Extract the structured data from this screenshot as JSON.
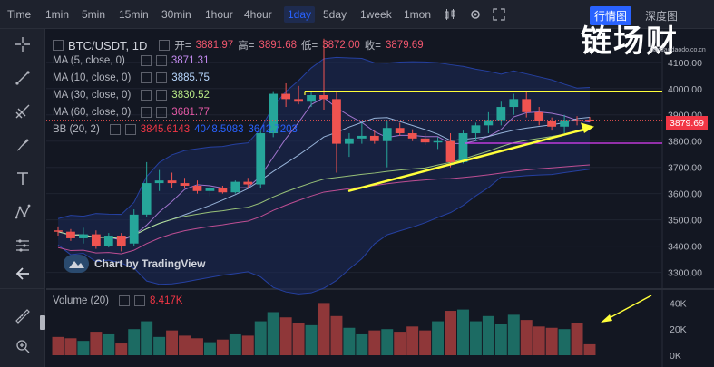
{
  "toolbar": {
    "items": [
      "Time",
      "1min",
      "5min",
      "15min",
      "30min",
      "1hour",
      "4hour",
      "1day",
      "5day",
      "1week",
      "1mon"
    ],
    "active": "1day",
    "tab_market": "行情图",
    "tab_depth": "深度图"
  },
  "brand": {
    "logo_text": "链场财",
    "logo_url": "liandaodaodo.co.cn"
  },
  "legend": {
    "symbol": "BTC/USDT, 1D",
    "open_label": "开=",
    "open": "3881.97",
    "high_label": "高=",
    "high": "3891.68",
    "low_label": "低=",
    "low": "3872.00",
    "close_label": "收=",
    "close": "3879.69",
    "ma5_label": "MA (5, close, 0)",
    "ma5_value": "3871.31",
    "ma5_color": "#c38af0",
    "ma10_label": "MA (10, close, 0)",
    "ma10_value": "3885.75",
    "ma10_color": "#b8d8ff",
    "ma30_label": "MA (30, close, 0)",
    "ma30_value": "3830.52",
    "ma30_color": "#b8e986",
    "ma60_label": "MA (60, close, 0)",
    "ma60_value": "3681.77",
    "ma60_color": "#e85aa8",
    "bb_label": "BB (20, 2)",
    "bb_value1": "3845.6143",
    "bb_value2": "4048.5083",
    "bb_value3": "3642.7203",
    "volume_label": "Volume (20)",
    "volume_value": "8.417K"
  },
  "credit": "Chart by TradingView",
  "price_tag": "3879.69",
  "colors": {
    "up": "#26a69a",
    "down": "#ef5350",
    "accent": "#2962ff",
    "annotation": "#ffff3a"
  },
  "chart_data": {
    "type": "candlestick",
    "y_ticks": [
      "4100.00",
      "4000.00",
      "3900.00",
      "3800.00",
      "3700.00",
      "3600.00",
      "3500.00",
      "3400.00",
      "3300.00"
    ],
    "volume_ticks": [
      "40K",
      "20K",
      "0K"
    ],
    "ylim": [
      3240,
      4220
    ],
    "candles": [
      {
        "o": 3460,
        "h": 3475,
        "l": 3440,
        "c": 3455
      },
      {
        "o": 3455,
        "h": 3465,
        "l": 3420,
        "c": 3430
      },
      {
        "o": 3430,
        "h": 3470,
        "l": 3410,
        "c": 3445
      },
      {
        "o": 3445,
        "h": 3460,
        "l": 3390,
        "c": 3400
      },
      {
        "o": 3400,
        "h": 3450,
        "l": 3395,
        "c": 3440
      },
      {
        "o": 3440,
        "h": 3450,
        "l": 3380,
        "c": 3400
      },
      {
        "o": 3410,
        "h": 3540,
        "l": 3400,
        "c": 3520
      },
      {
        "o": 3520,
        "h": 3720,
        "l": 3510,
        "c": 3640
      },
      {
        "o": 3640,
        "h": 3690,
        "l": 3610,
        "c": 3650
      },
      {
        "o": 3650,
        "h": 3680,
        "l": 3620,
        "c": 3640
      },
      {
        "o": 3640,
        "h": 3660,
        "l": 3620,
        "c": 3630
      },
      {
        "o": 3630,
        "h": 3650,
        "l": 3600,
        "c": 3610
      },
      {
        "o": 3610,
        "h": 3630,
        "l": 3590,
        "c": 3620
      },
      {
        "o": 3620,
        "h": 3630,
        "l": 3600,
        "c": 3605
      },
      {
        "o": 3605,
        "h": 3650,
        "l": 3600,
        "c": 3645
      },
      {
        "o": 3645,
        "h": 3660,
        "l": 3620,
        "c": 3635
      },
      {
        "o": 3635,
        "h": 3840,
        "l": 3620,
        "c": 3830
      },
      {
        "o": 3830,
        "h": 3990,
        "l": 3815,
        "c": 3980
      },
      {
        "o": 3980,
        "h": 4020,
        "l": 3930,
        "c": 3960
      },
      {
        "o": 3960,
        "h": 4010,
        "l": 3940,
        "c": 3950
      },
      {
        "o": 3950,
        "h": 3990,
        "l": 3930,
        "c": 3975
      },
      {
        "o": 3975,
        "h": 4190,
        "l": 3920,
        "c": 3960
      },
      {
        "o": 3960,
        "h": 3985,
        "l": 3680,
        "c": 3790
      },
      {
        "o": 3790,
        "h": 3830,
        "l": 3740,
        "c": 3810
      },
      {
        "o": 3810,
        "h": 3870,
        "l": 3790,
        "c": 3820
      },
      {
        "o": 3820,
        "h": 3840,
        "l": 3790,
        "c": 3800
      },
      {
        "o": 3800,
        "h": 3880,
        "l": 3700,
        "c": 3850
      },
      {
        "o": 3850,
        "h": 3870,
        "l": 3820,
        "c": 3830
      },
      {
        "o": 3830,
        "h": 3845,
        "l": 3800,
        "c": 3810
      },
      {
        "o": 3810,
        "h": 3830,
        "l": 3785,
        "c": 3795
      },
      {
        "o": 3795,
        "h": 3815,
        "l": 3770,
        "c": 3800
      },
      {
        "o": 3800,
        "h": 3830,
        "l": 3700,
        "c": 3720
      },
      {
        "o": 3720,
        "h": 3840,
        "l": 3715,
        "c": 3830
      },
      {
        "o": 3830,
        "h": 3870,
        "l": 3800,
        "c": 3860
      },
      {
        "o": 3860,
        "h": 3910,
        "l": 3830,
        "c": 3880
      },
      {
        "o": 3880,
        "h": 3950,
        "l": 3860,
        "c": 3930
      },
      {
        "o": 3930,
        "h": 3980,
        "l": 3900,
        "c": 3960
      },
      {
        "o": 3960,
        "h": 3990,
        "l": 3890,
        "c": 3910
      },
      {
        "o": 3910,
        "h": 3930,
        "l": 3860,
        "c": 3875
      },
      {
        "o": 3875,
        "h": 3890,
        "l": 3840,
        "c": 3855
      },
      {
        "o": 3855,
        "h": 3900,
        "l": 3830,
        "c": 3880
      },
      {
        "o": 3880,
        "h": 3895,
        "l": 3860,
        "c": 3875
      },
      {
        "o": 3881.97,
        "h": 3891.68,
        "l": 3872.0,
        "c": 3879.69
      }
    ],
    "volumes": [
      14,
      13,
      11,
      18,
      16,
      9,
      20,
      26,
      14,
      19,
      15,
      13,
      10,
      12,
      16,
      15,
      26,
      33,
      29,
      25,
      23,
      40,
      30,
      21,
      16,
      19,
      20,
      18,
      22,
      19,
      26,
      34,
      35,
      26,
      30,
      24,
      31,
      27,
      22,
      21,
      20,
      25,
      8.4
    ]
  }
}
